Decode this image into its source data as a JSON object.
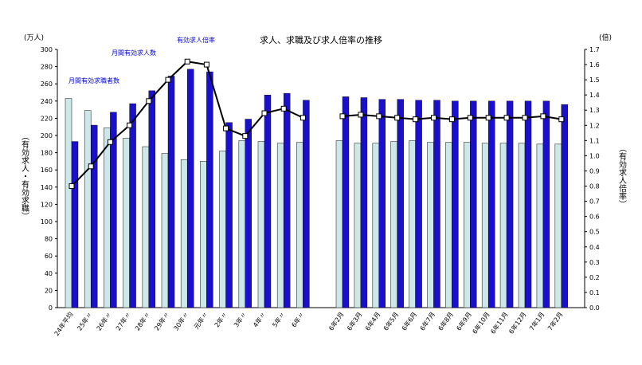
{
  "chart_data": {
    "type": "bar",
    "title": "求人、求職及び求人倍率の推移",
    "y_left_unit": "(万人)",
    "y_right_unit": "(倍)",
    "ylabel_left": "（有効求人・有効求職）",
    "ylabel_right": "（有効求人倍率）",
    "ylim_left": [
      0,
      300
    ],
    "ylim_right": [
      0.0,
      1.7
    ],
    "yticks_left": [
      "0",
      "20",
      "40",
      "60",
      "80",
      "100",
      "120",
      "140",
      "160",
      "180",
      "200",
      "220",
      "240",
      "260",
      "280",
      "300"
    ],
    "yticks_right": [
      "0.0",
      "0.1",
      "0.2",
      "0.3",
      "0.4",
      "0.5",
      "0.6",
      "0.7",
      "0.8",
      "0.9",
      "1.0",
      "1.1",
      "1.2",
      "1.3",
      "1.4",
      "1.5",
      "1.6",
      "1.7"
    ],
    "grid": false,
    "colors": {
      "seekers": "#cde8e8",
      "openings": "#1a10cc",
      "ratio": "#000000"
    },
    "group1": {
      "categories": [
        "24年平均",
        "25年〃",
        "26年〃",
        "27年〃",
        "28年〃",
        "29年〃",
        "30年〃",
        "元年〃",
        "2年〃",
        "3年〃",
        "4年〃",
        "5年〃",
        "6年〃"
      ],
      "seekers": [
        243,
        229,
        209,
        197,
        187,
        179,
        172,
        170,
        182,
        194,
        193,
        191,
        192
      ],
      "openings": [
        193,
        212,
        227,
        237,
        252,
        269,
        277,
        274,
        215,
        219,
        247,
        249,
        241
      ],
      "ratio": [
        0.8,
        0.93,
        1.09,
        1.2,
        1.36,
        1.5,
        1.62,
        1.6,
        1.18,
        1.13,
        1.28,
        1.31,
        1.25
      ]
    },
    "group2": {
      "categories": [
        "6年2月",
        "6年3月",
        "6年4月",
        "6年5月",
        "6年6月",
        "6年7月",
        "6年8月",
        "6年9月",
        "6年10月",
        "6年11月",
        "6年12月",
        "7年1月",
        "7年2月"
      ],
      "seekers": [
        194,
        191,
        191,
        193,
        194,
        192,
        192,
        192,
        191,
        191,
        191,
        190,
        190
      ],
      "openings": [
        245,
        244,
        242,
        242,
        241,
        241,
        240,
        240,
        240,
        240,
        240,
        240,
        236
      ],
      "ratio": [
        1.26,
        1.27,
        1.26,
        1.25,
        1.24,
        1.25,
        1.24,
        1.25,
        1.25,
        1.25,
        1.25,
        1.26,
        1.24
      ]
    },
    "annotations": {
      "seekers": "月間有効求職者数",
      "openings": "月間有効求人数",
      "ratio": "有効求人倍率"
    }
  }
}
